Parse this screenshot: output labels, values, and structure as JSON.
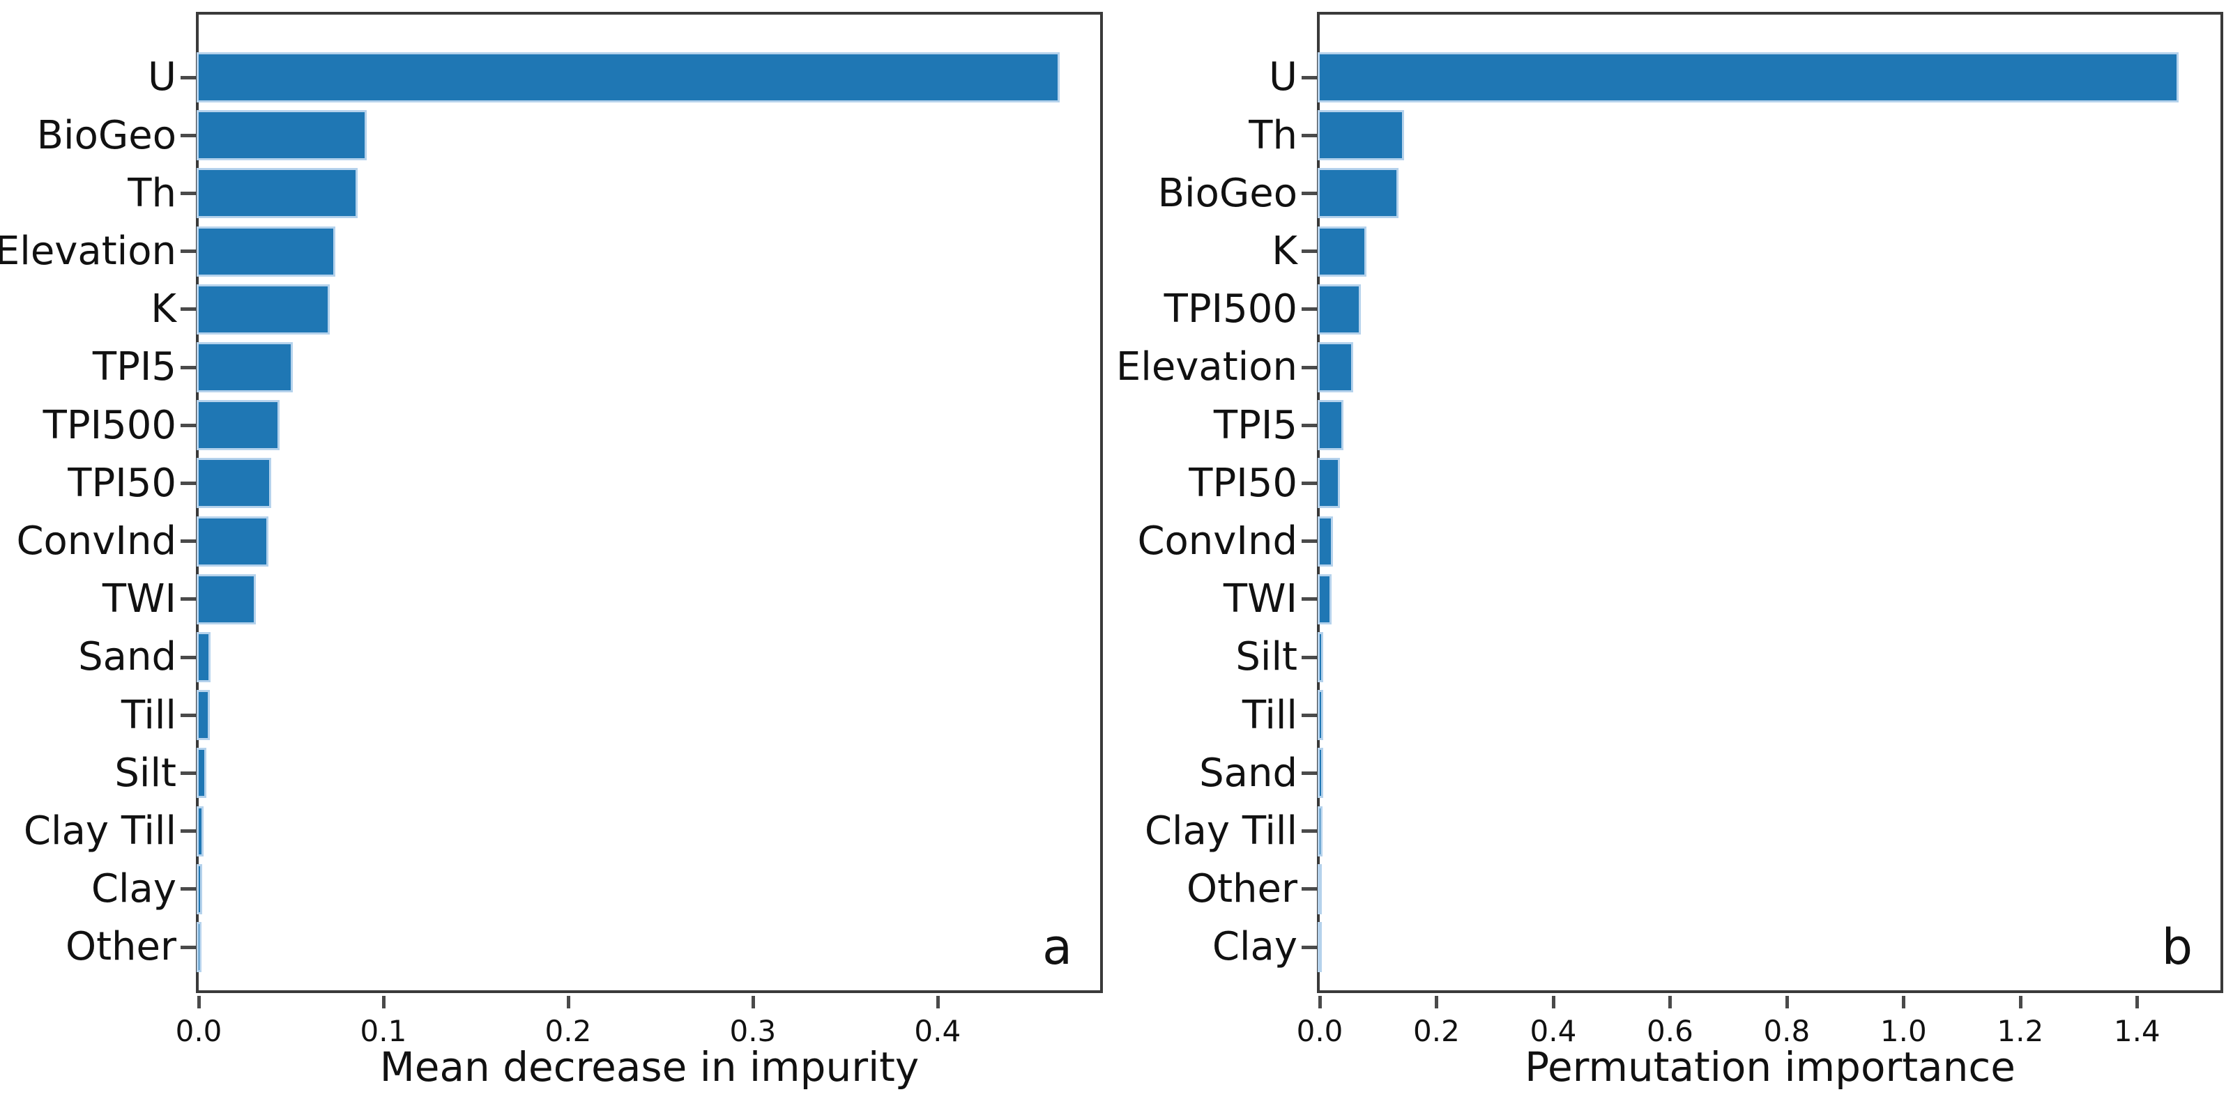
{
  "figure": {
    "background": "#ffffff",
    "bar_color": "#1f77b4",
    "bar_halo_color": "#b5d2ec",
    "spine_color": "#3a3a3a",
    "tick_color": "#4a4a4a",
    "text_color": "#111111"
  },
  "chart_data": [
    {
      "type": "bar",
      "orientation": "horizontal",
      "panel_letter": "a",
      "xlabel": "Mean decrease in impurity",
      "xlim": [
        0,
        0.488
      ],
      "xticks": [
        0.0,
        0.1,
        0.2,
        0.3,
        0.4
      ],
      "xtick_labels": [
        "0.0",
        "0.1",
        "0.2",
        "0.3",
        "0.4"
      ],
      "grid": false,
      "legend": null,
      "categories": [
        "U",
        "BioGeo",
        "Th",
        "Elevation",
        "K",
        "TPI5",
        "TPI500",
        "TPI50",
        "ConvInd",
        "TWI",
        "Sand",
        "Till",
        "Silt",
        "Clay Till",
        "Clay",
        "Other"
      ],
      "values": [
        0.465,
        0.09,
        0.085,
        0.073,
        0.07,
        0.05,
        0.0425,
        0.038,
        0.0365,
        0.03,
        0.0054,
        0.005,
        0.003,
        0.0016,
        0.0006,
        0.0003
      ]
    },
    {
      "type": "bar",
      "orientation": "horizontal",
      "panel_letter": "b",
      "xlabel": "Permutation importance",
      "xlim": [
        0,
        1.543
      ],
      "xticks": [
        0.0,
        0.2,
        0.4,
        0.6,
        0.8,
        1.0,
        1.2,
        1.4
      ],
      "xtick_labels": [
        "0.0",
        "0.2",
        "0.4",
        "0.6",
        "0.8",
        "1.0",
        "1.2",
        "1.4"
      ],
      "grid": false,
      "legend": null,
      "categories": [
        "U",
        "Th",
        "BioGeo",
        "K",
        "TPI500",
        "Elevation",
        "TPI5",
        "TPI50",
        "ConvInd",
        "TWI",
        "Silt",
        "Till",
        "Sand",
        "Clay Till",
        "Other",
        "Clay"
      ],
      "values": [
        1.468,
        0.141,
        0.131,
        0.077,
        0.067,
        0.054,
        0.037,
        0.031,
        0.019,
        0.017,
        0.002,
        0.002,
        0.002,
        0.001,
        0.0005,
        0.0003
      ]
    }
  ]
}
